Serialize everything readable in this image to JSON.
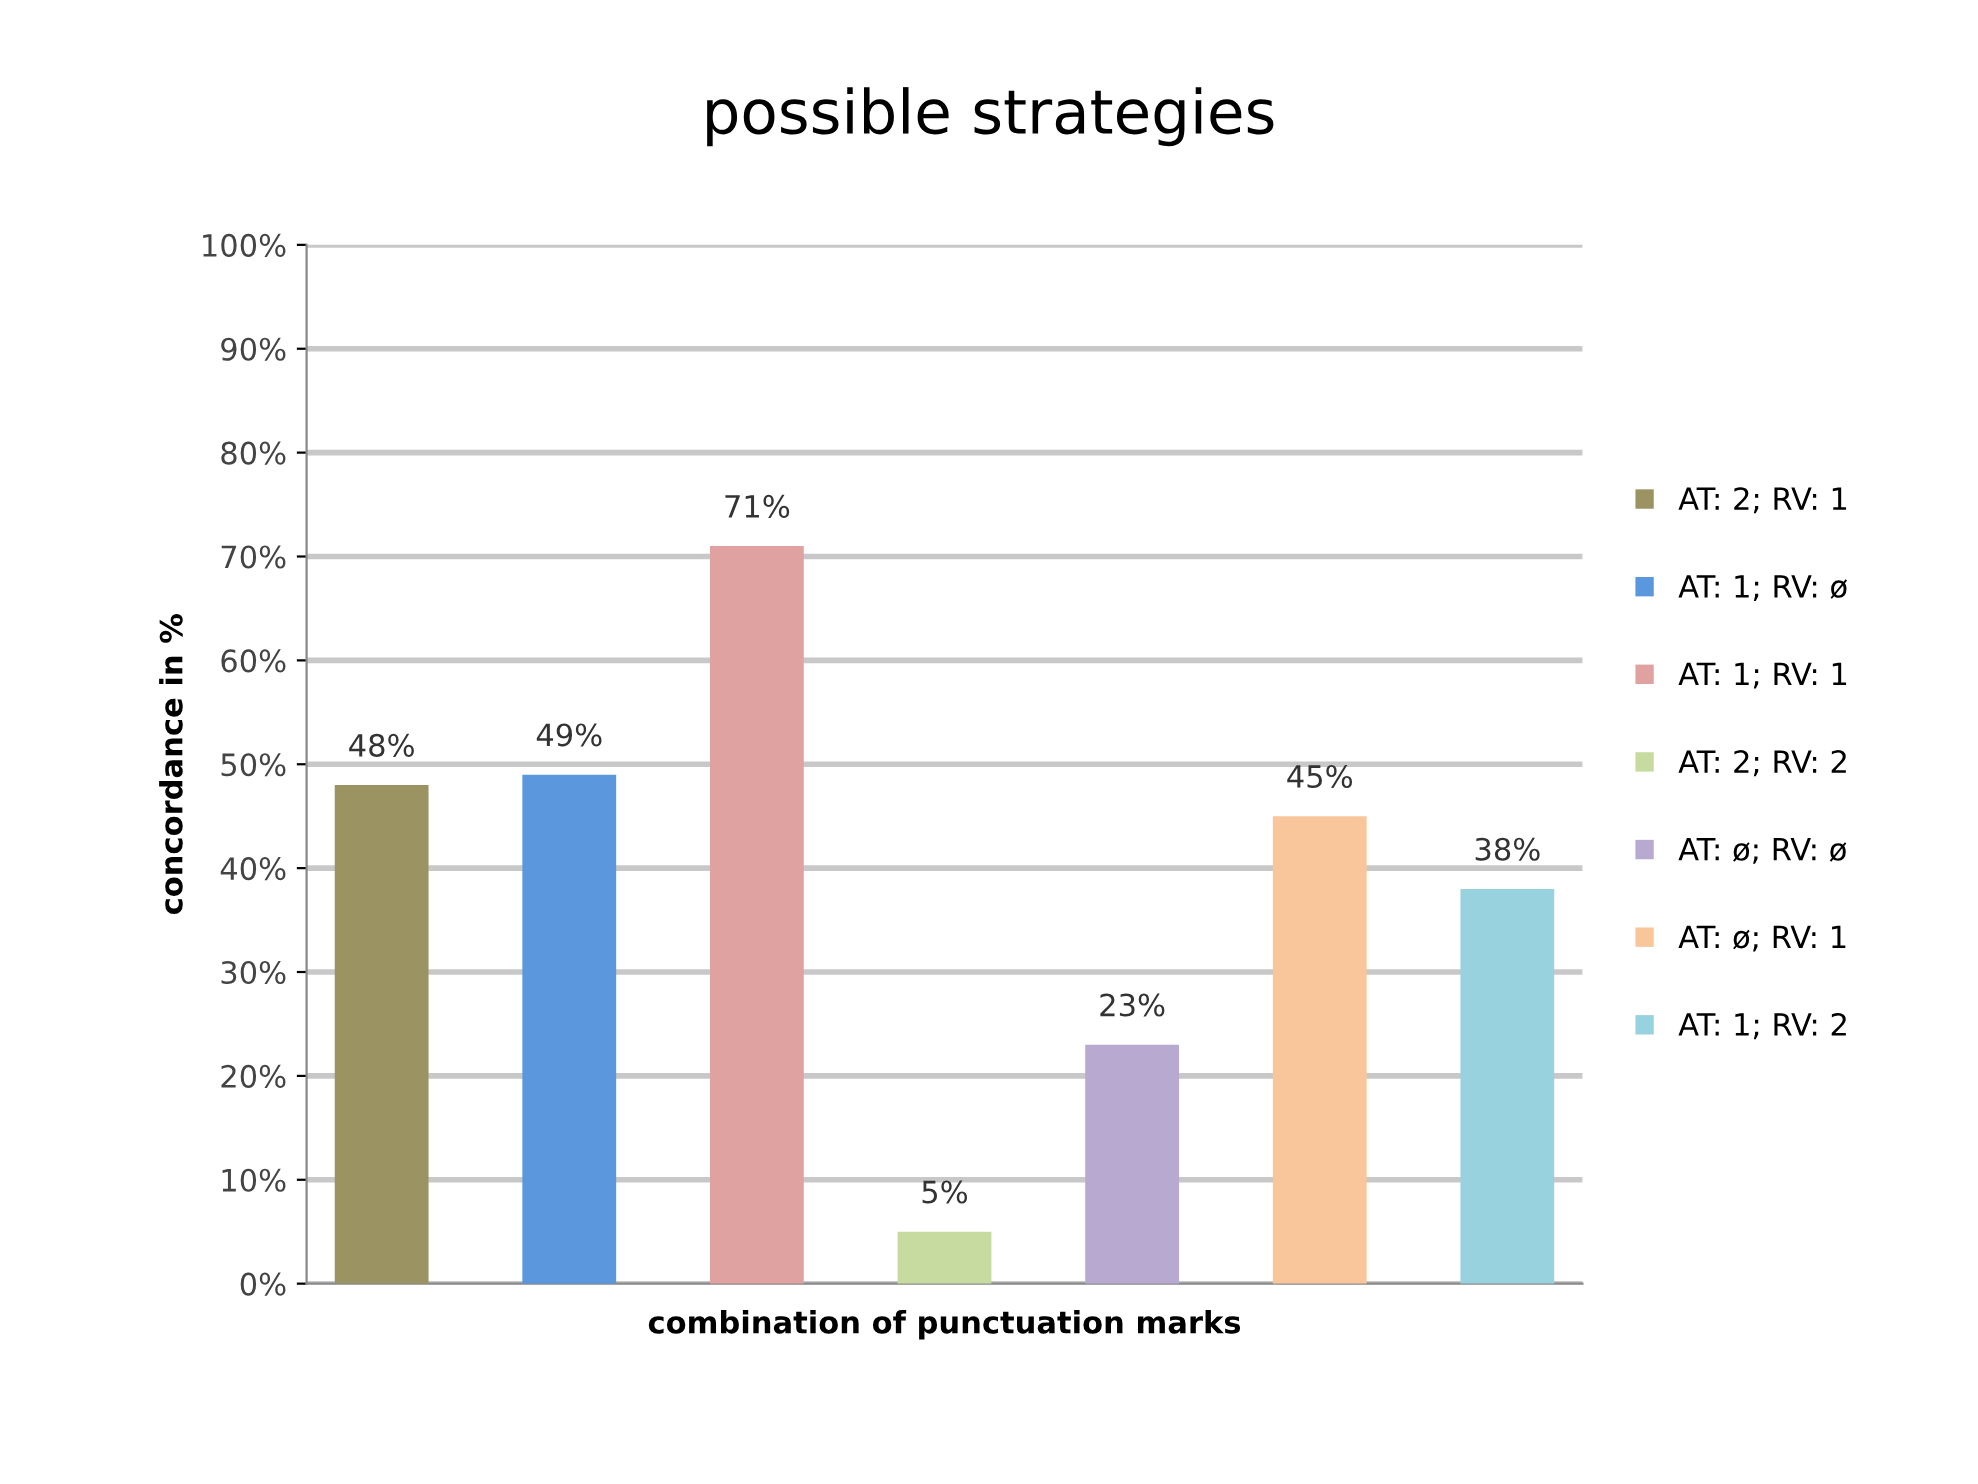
{
  "chart_data": {
    "type": "bar",
    "title": "possible strategies",
    "xlabel": "combination of punctuation marks",
    "ylabel": "concordance in %",
    "categories": [
      null
    ],
    "series": [
      {
        "name": "AT: 2; RV: 1",
        "color": "#9b9462",
        "values": [
          48
        ],
        "value_labels": [
          "48%"
        ]
      },
      {
        "name": "AT: 1; RV: ø",
        "color": "#5b97dc",
        "values": [
          49
        ],
        "value_labels": [
          "49%"
        ]
      },
      {
        "name": "AT: 1; RV: 1",
        "color": "#e0a2a1",
        "values": [
          71
        ],
        "value_labels": [
          "71%"
        ]
      },
      {
        "name": "AT: 2; RV: 2",
        "color": "#c7dba1",
        "values": [
          5
        ],
        "value_labels": [
          "5%"
        ]
      },
      {
        "name": "AT: ø; RV: ø",
        "color": "#b7a9d0",
        "values": [
          23
        ],
        "value_labels": [
          "23%"
        ]
      },
      {
        "name": "AT: ø; RV: 1",
        "color": "#f8c69a",
        "values": [
          45
        ],
        "value_labels": [
          "45%"
        ]
      },
      {
        "name": "AT: 1; RV: 2",
        "color": "#98d2df",
        "values": [
          38
        ],
        "value_labels": [
          "38%"
        ]
      }
    ],
    "ylim": [
      0,
      100
    ],
    "yticks": [
      {
        "value": 0,
        "label": "0%"
      },
      {
        "value": 10,
        "label": "10%"
      },
      {
        "value": 20,
        "label": "20%"
      },
      {
        "value": 30,
        "label": "30%"
      },
      {
        "value": 40,
        "label": "40%"
      },
      {
        "value": 50,
        "label": "50%"
      },
      {
        "value": 60,
        "label": "60%"
      },
      {
        "value": 70,
        "label": "70%"
      },
      {
        "value": 80,
        "label": "80%"
      },
      {
        "value": 90,
        "label": "90%"
      },
      {
        "value": 100,
        "label": "100%"
      }
    ],
    "grid": "y",
    "legend": "right"
  }
}
